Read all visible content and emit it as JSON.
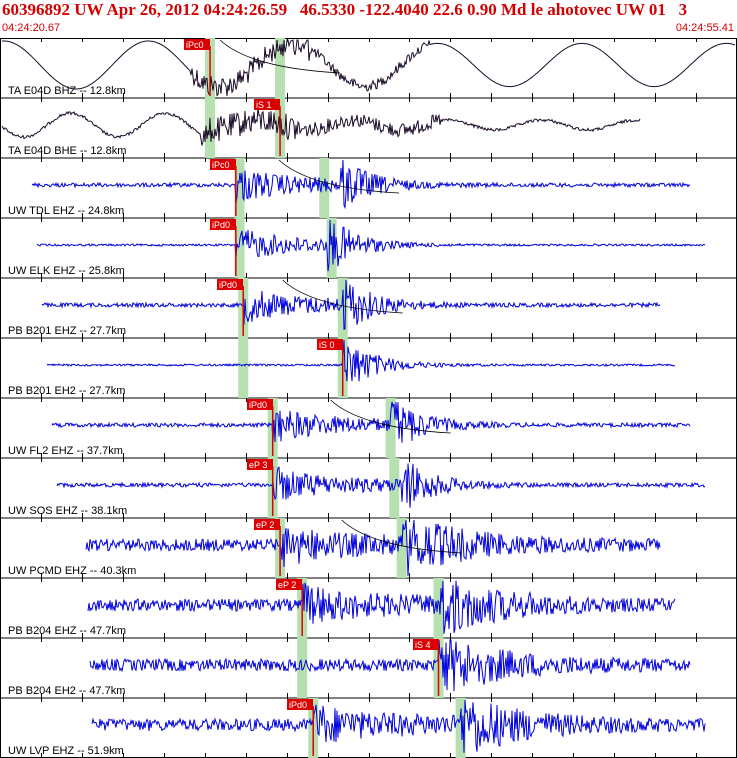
{
  "header": {
    "title": "60396892 UW Apr 26, 2012 04:24:26.59   46.5330 -122.4040 22.6 0.90 Md le ahotovec UW 01   3",
    "start_time": "04:24:20.67",
    "end_time": "04:24:55.41"
  },
  "colors": {
    "header_text": "#d40000",
    "trace_black": "#1a0a28",
    "trace_blue": "#0000dd",
    "pick_box": "#dd0000",
    "pick_window": "#b6e0b0",
    "label_text": "#000000"
  },
  "chart_data": {
    "type": "line",
    "title": "60396892 UW Apr 26, 2012 04:24:26.59",
    "x_unit": "time",
    "time_range": [
      "04:24:20.67",
      "04:24:55.41"
    ],
    "traces": [
      {
        "label": "TA E04D BHZ -- 12.8km",
        "color": "black",
        "pick_label": "iPc0",
        "pick_frac": 0.285,
        "window_fracs": [
          0.285,
          0.38
        ],
        "s_frac": 0.38,
        "style": "long-period"
      },
      {
        "label": "TA E04D BHE -- 12.8km",
        "color": "black",
        "pick_label": "iS 1",
        "pick_frac": 0.38,
        "window_fracs": [
          0.285,
          0.38
        ],
        "s_frac": 0.38,
        "style": "long-period-2"
      },
      {
        "label": "UW TDL EHZ -- 24.8km",
        "color": "blue",
        "pick_label": "iPc0",
        "pick_frac": 0.32,
        "window_fracs": [
          0.325,
          0.44
        ],
        "s_frac": 0.46,
        "style": "quake"
      },
      {
        "label": "UW ELK EHZ -- 25.8km",
        "color": "blue",
        "pick_label": "iPd0",
        "pick_frac": 0.32,
        "window_fracs": [
          0.325,
          0.45
        ],
        "s_frac": 0.445,
        "style": "quake-small"
      },
      {
        "label": "PB B201 EHZ -- 27.7km",
        "color": "blue",
        "pick_label": "iPd0",
        "pick_frac": 0.33,
        "window_fracs": [
          0.33,
          0.465
        ],
        "s_frac": 0.465,
        "style": "quake"
      },
      {
        "label": "PB B201 EH2 -- 27.7km",
        "color": "blue",
        "pick_label": "iS 0",
        "pick_frac": 0.465,
        "window_fracs": [
          0.33,
          0.465
        ],
        "s_frac": 0.465,
        "style": "quake-s"
      },
      {
        "label": "UW FL2 EHZ -- 37.7km",
        "color": "blue",
        "pick_label": "iPd0",
        "pick_frac": 0.37,
        "window_fracs": [
          0.37,
          0.53
        ],
        "s_frac": 0.53,
        "style": "quake"
      },
      {
        "label": "UW SOS EHZ -- 38.1km",
        "color": "blue",
        "pick_label": "eP 3",
        "pick_frac": 0.37,
        "window_fracs": [
          0.37,
          0.535
        ],
        "s_frac": 0.545,
        "style": "quake"
      },
      {
        "label": "UW PCMD EHZ -- 40.3km",
        "color": "blue",
        "pick_label": "eP 2",
        "pick_frac": 0.38,
        "window_fracs": [
          0.38,
          0.545
        ],
        "s_frac": 0.545,
        "style": "noisy"
      },
      {
        "label": "PB B204 EHZ -- 47.7km",
        "color": "blue",
        "pick_label": "eP 2",
        "pick_frac": 0.41,
        "window_fracs": [
          0.41,
          0.595
        ],
        "s_frac": 0.595,
        "style": "noisy-big"
      },
      {
        "label": "PB B204 EH2 -- 47.7km",
        "color": "blue",
        "pick_label": "iS 4",
        "pick_frac": 0.595,
        "window_fracs": [
          0.41,
          0.595
        ],
        "s_frac": 0.595,
        "style": "noisy-s"
      },
      {
        "label": "UW LVP EHZ -- 51.9km",
        "color": "blue",
        "pick_label": "iPd0",
        "pick_frac": 0.425,
        "window_fracs": [
          0.425,
          0.625
        ],
        "s_frac": 0.625,
        "style": "noisy-big"
      }
    ]
  }
}
